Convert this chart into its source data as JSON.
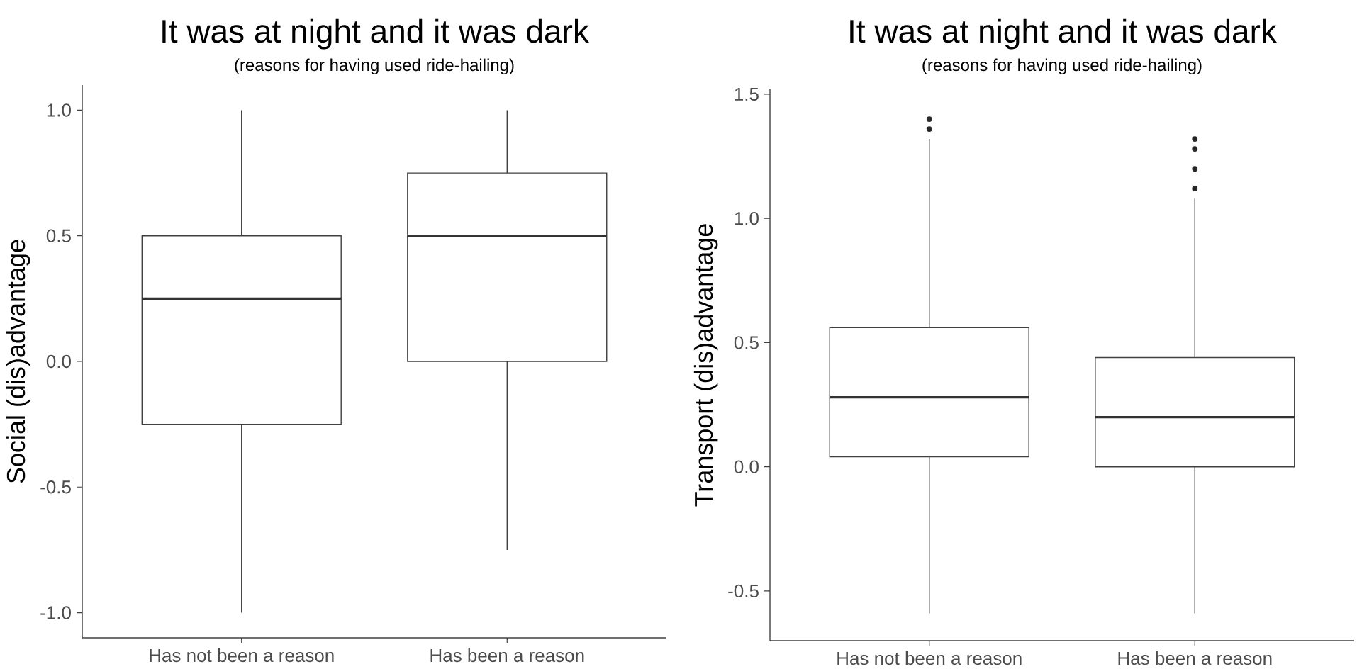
{
  "chart_data": [
    {
      "type": "box",
      "title": "It was at night and it was dark",
      "subtitle": "(reasons for having used ride-hailing)",
      "ylabel": "Social (dis)advantage",
      "categories": [
        "Has not been a reason",
        "Has been a reason"
      ],
      "boxes": [
        {
          "low": -1.0,
          "q1": -0.25,
          "median": 0.25,
          "q3": 0.5,
          "high": 1.0
        },
        {
          "low": -0.75,
          "q1": 0.0,
          "median": 0.5,
          "q3": 0.75,
          "high": 1.0
        }
      ],
      "ylim": [
        -1.1,
        1.1
      ],
      "yticks": [
        {
          "value": -1.0,
          "label": "-1.0"
        },
        {
          "value": -0.5,
          "label": "-0.5"
        },
        {
          "value": 0.0,
          "label": "0.0"
        },
        {
          "value": 0.5,
          "label": "0.5"
        },
        {
          "value": 1.0,
          "label": "1.0"
        }
      ]
    },
    {
      "type": "box",
      "title": "It was at night and it was dark",
      "subtitle": "(reasons for having used ride-hailing)",
      "ylabel": "Transport (dis)advantage",
      "categories": [
        "Has not been a reason",
        "Has been a reason"
      ],
      "boxes": [
        {
          "low": -0.59,
          "q1": 0.04,
          "median": 0.28,
          "q3": 0.56,
          "high": 1.32,
          "outliers": [
            1.36,
            1.4
          ]
        },
        {
          "low": -0.59,
          "q1": 0.0,
          "median": 0.2,
          "q3": 0.44,
          "high": 1.08,
          "outliers": [
            1.12,
            1.2,
            1.28,
            1.32
          ]
        }
      ],
      "ylim": [
        -0.7,
        1.52
      ],
      "yticks": [
        {
          "value": -0.5,
          "label": "-0.5"
        },
        {
          "value": 0.0,
          "label": "0.0"
        },
        {
          "value": 0.5,
          "label": "0.5"
        },
        {
          "value": 1.0,
          "label": "1.0"
        },
        {
          "value": 1.5,
          "label": "1.5"
        }
      ]
    }
  ]
}
